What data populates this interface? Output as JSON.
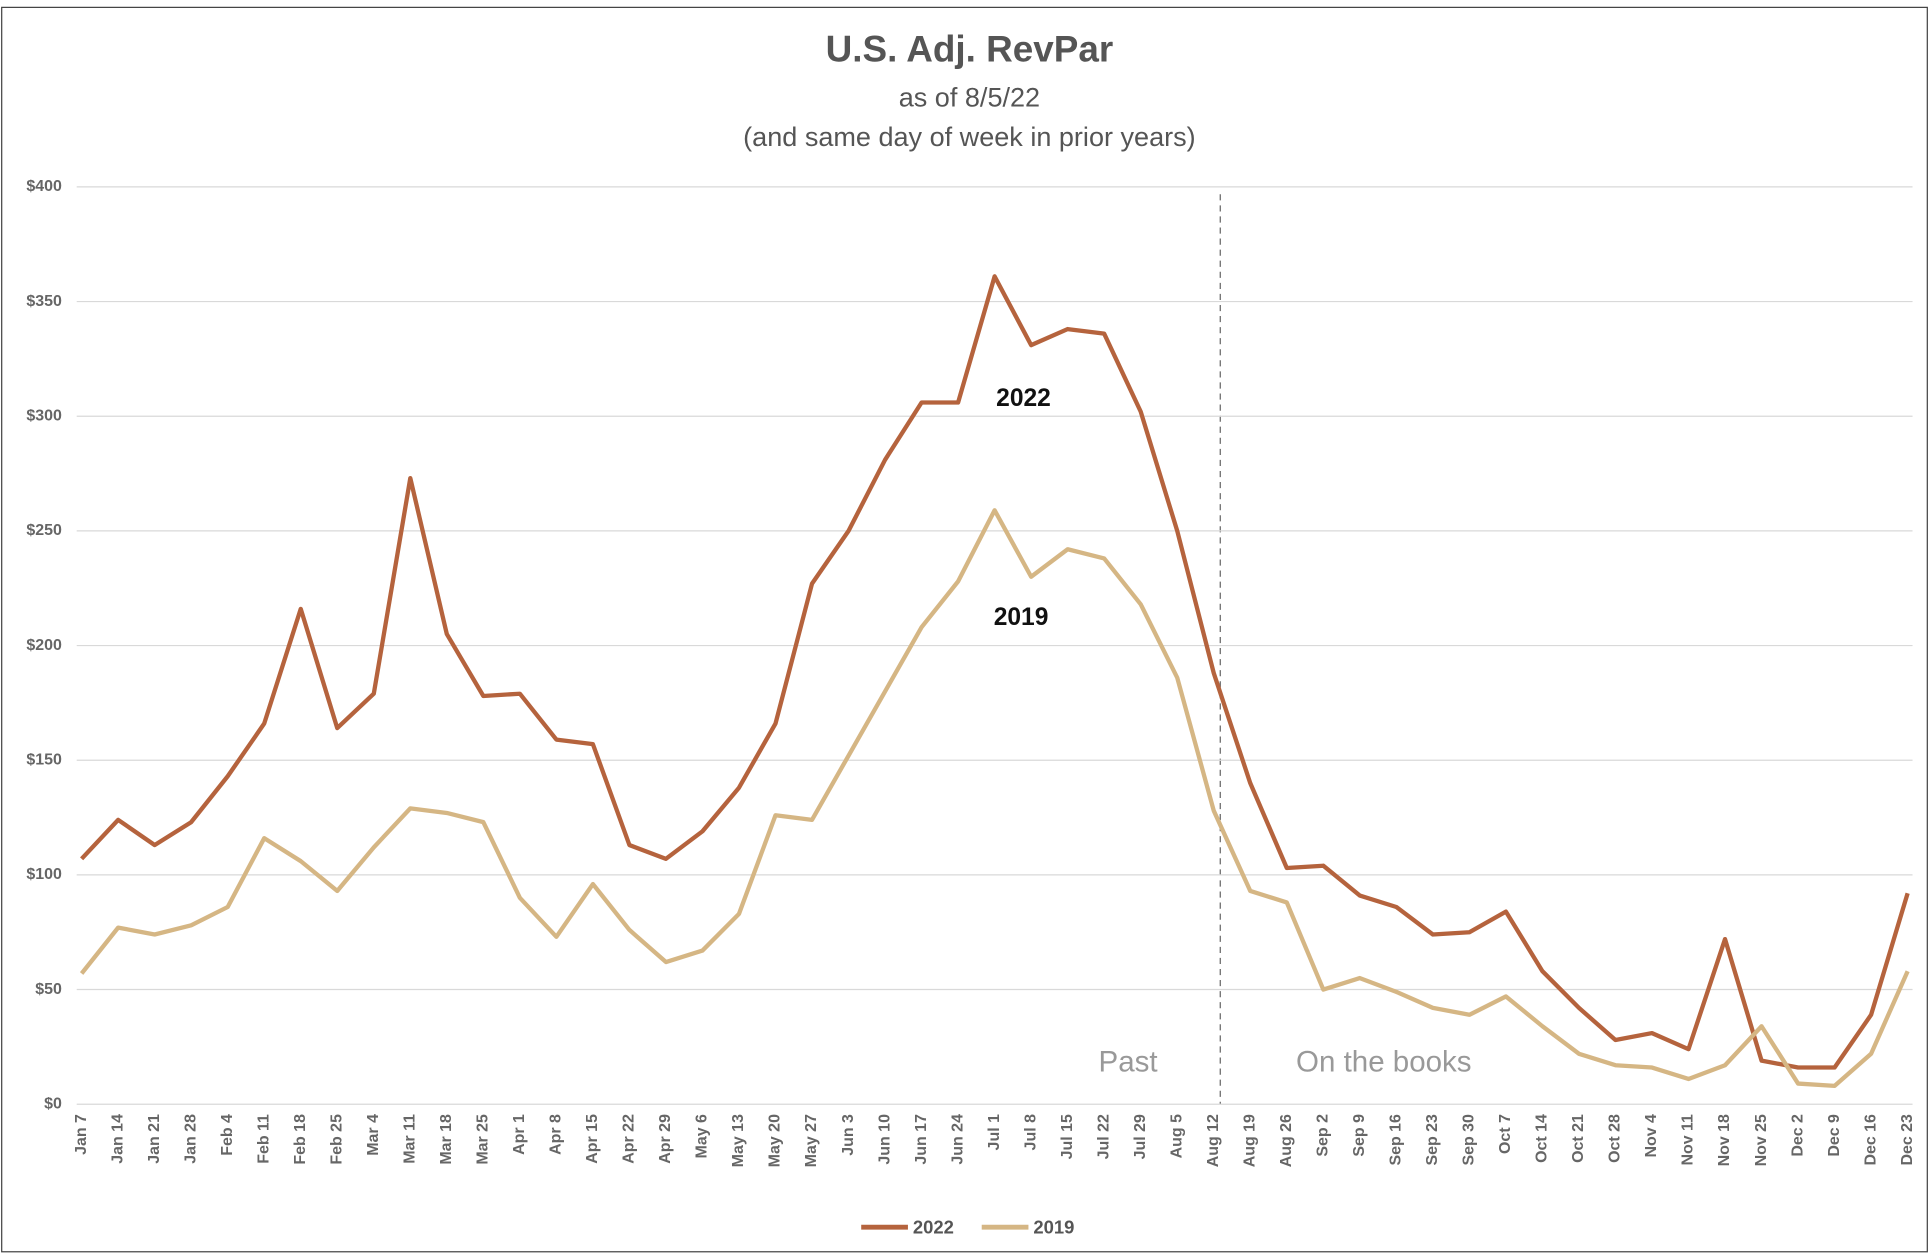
{
  "chart_data": {
    "type": "line",
    "title": "U.S. Adj. RevPar",
    "subtitle": "as of 8/5/22",
    "subtitle2": "(and same day of week in prior years)",
    "categories": [
      "Jan 7",
      "Jan 14",
      "Jan 21",
      "Jan 28",
      "Feb 4",
      "Feb 11",
      "Feb 18",
      "Feb 25",
      "Mar 4",
      "Mar 11",
      "Mar 18",
      "Mar 25",
      "Apr 1",
      "Apr 8",
      "Apr 15",
      "Apr 22",
      "Apr 29",
      "May 6",
      "May 13",
      "May 20",
      "May 27",
      "Jun 3",
      "Jun 10",
      "Jun 17",
      "Jun 24",
      "Jul 1",
      "Jul 8",
      "Jul 15",
      "Jul 22",
      "Jul 29",
      "Aug 5",
      "Aug 12",
      "Aug 19",
      "Aug 26",
      "Sep 2",
      "Sep 9",
      "Sep 16",
      "Sep 23",
      "Sep 30",
      "Oct 7",
      "Oct 14",
      "Oct 21",
      "Oct 28",
      "Nov 4",
      "Nov 11",
      "Nov 18",
      "Nov 25",
      "Dec 2",
      "Dec 9",
      "Dec 16",
      "Dec 23"
    ],
    "series": [
      {
        "name": "2022",
        "color": "#b5633d",
        "values": [
          107,
          124,
          113,
          123,
          143,
          166,
          216,
          164,
          179,
          273,
          205,
          178,
          179,
          159,
          157,
          113,
          107,
          119,
          138,
          166,
          227,
          250,
          281,
          306,
          306,
          361,
          331,
          338,
          336,
          302,
          250,
          188,
          140,
          103,
          104,
          91,
          86,
          74,
          75,
          84,
          58,
          42,
          28,
          31,
          24,
          72,
          19,
          16,
          16,
          39,
          92
        ]
      },
      {
        "name": "2019",
        "color": "#d5b684",
        "values": [
          57,
          77,
          74,
          78,
          86,
          116,
          106,
          93,
          112,
          129,
          127,
          123,
          90,
          73,
          96,
          76,
          62,
          67,
          83,
          126,
          124,
          152,
          180,
          208,
          228,
          259,
          230,
          242,
          238,
          218,
          186,
          128,
          93,
          88,
          50,
          55,
          49,
          42,
          39,
          47,
          34,
          22,
          17,
          16,
          11,
          17,
          34,
          9,
          8,
          22,
          58
        ]
      }
    ],
    "ylim": [
      0,
      400
    ],
    "yticks": [
      {
        "value": 0,
        "label": "$0"
      },
      {
        "value": 50,
        "label": "$50"
      },
      {
        "value": 100,
        "label": "$100"
      },
      {
        "value": 150,
        "label": "$150"
      },
      {
        "value": 200,
        "label": "$200"
      },
      {
        "value": 250,
        "label": "$250"
      },
      {
        "value": 300,
        "label": "$300"
      },
      {
        "value": 350,
        "label": "$350"
      },
      {
        "value": 400,
        "label": "$400"
      }
    ],
    "grid": true,
    "legend": "bottom",
    "annotations": [
      "2022",
      "2019",
      "Past",
      "On the books"
    ]
  }
}
